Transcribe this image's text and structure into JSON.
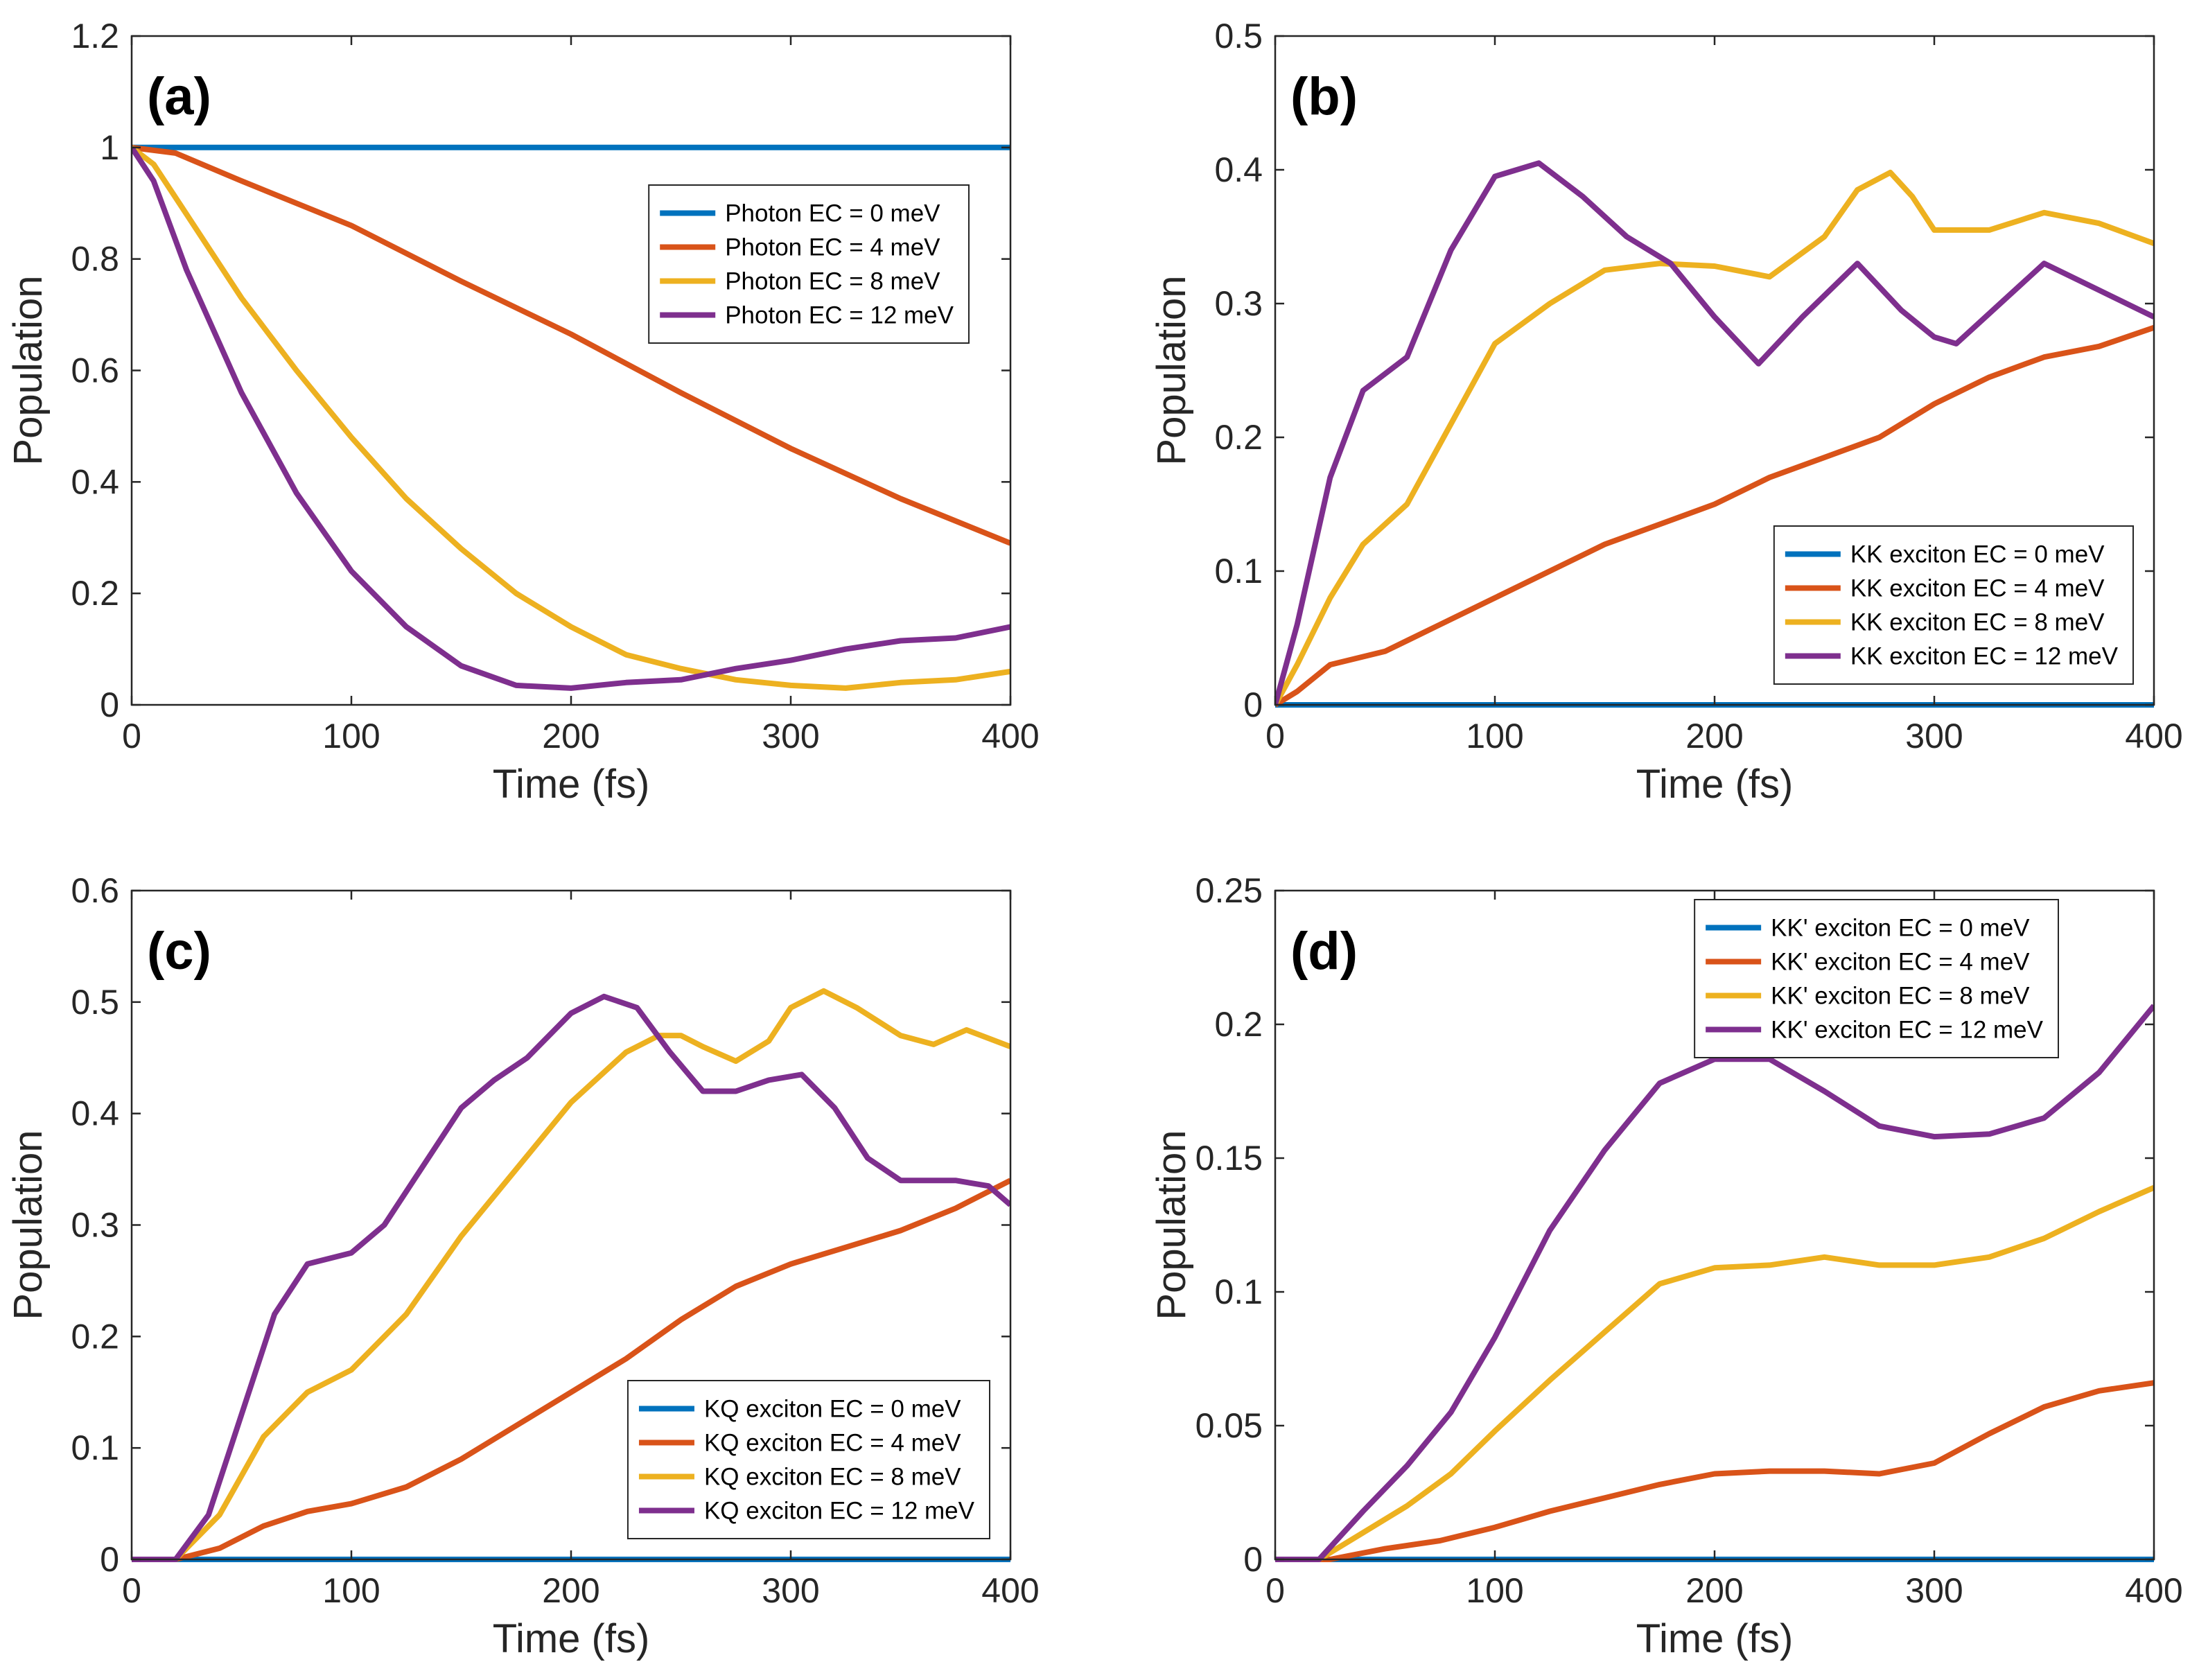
{
  "figure": {
    "background": "#ffffff",
    "axis_color": "#262626"
  },
  "chart_data": [
    {
      "type": "line",
      "panel_label": "(a)",
      "xlabel": "Time (fs)",
      "ylabel": "Population",
      "xlim": [
        0,
        400
      ],
      "ylim": [
        0,
        1.2
      ],
      "xticks": [
        0,
        100,
        200,
        300,
        400
      ],
      "xtick_labels": [
        "0",
        "100",
        "200",
        "300",
        "400"
      ],
      "yticks": [
        0,
        0.2,
        0.4,
        0.6,
        0.8,
        1,
        1.2
      ],
      "ytick_labels": [
        "0",
        "0.2",
        "0.4",
        "0.6",
        "0.8",
        "1",
        "1.2"
      ],
      "legend_location": "upper-right",
      "series": [
        {
          "name": "Photon EC = 0 meV",
          "color": "#0072BD",
          "x": [
            0,
            400
          ],
          "y": [
            1.0,
            1.0
          ]
        },
        {
          "name": "Photon EC = 4 meV",
          "color": "#D95319",
          "x": [
            0,
            20,
            50,
            100,
            150,
            200,
            250,
            300,
            350,
            400
          ],
          "y": [
            1.0,
            0.99,
            0.94,
            0.86,
            0.76,
            0.665,
            0.56,
            0.46,
            0.37,
            0.29
          ]
        },
        {
          "name": "Photon EC = 8 meV",
          "color": "#EDB120",
          "x": [
            0,
            10,
            25,
            50,
            75,
            100,
            125,
            150,
            175,
            200,
            225,
            250,
            275,
            300,
            325,
            350,
            375,
            400
          ],
          "y": [
            1.0,
            0.97,
            0.88,
            0.73,
            0.6,
            0.48,
            0.37,
            0.28,
            0.2,
            0.14,
            0.09,
            0.065,
            0.045,
            0.035,
            0.03,
            0.04,
            0.045,
            0.06
          ]
        },
        {
          "name": "Photon EC = 12 meV",
          "color": "#7E2F8E",
          "x": [
            0,
            10,
            25,
            50,
            75,
            100,
            125,
            150,
            175,
            200,
            225,
            250,
            275,
            300,
            325,
            350,
            375,
            400
          ],
          "y": [
            1.0,
            0.94,
            0.78,
            0.56,
            0.38,
            0.24,
            0.14,
            0.07,
            0.035,
            0.03,
            0.04,
            0.045,
            0.065,
            0.08,
            0.1,
            0.115,
            0.12,
            0.14
          ]
        }
      ]
    },
    {
      "type": "line",
      "panel_label": "(b)",
      "xlabel": "Time (fs)",
      "ylabel": "Population",
      "xlim": [
        0,
        400
      ],
      "ylim": [
        0,
        0.5
      ],
      "xticks": [
        0,
        100,
        200,
        300,
        400
      ],
      "xtick_labels": [
        "0",
        "100",
        "200",
        "300",
        "400"
      ],
      "yticks": [
        0,
        0.1,
        0.2,
        0.3,
        0.4,
        0.5
      ],
      "ytick_labels": [
        "0",
        "0.1",
        "0.2",
        "0.3",
        "0.4",
        "0.5"
      ],
      "legend_location": "lower-right",
      "series": [
        {
          "name": "KK exciton EC = 0 meV",
          "color": "#0072BD",
          "x": [
            0,
            400
          ],
          "y": [
            0,
            0
          ]
        },
        {
          "name": "KK exciton EC = 4 meV",
          "color": "#D95319",
          "x": [
            0,
            10,
            25,
            50,
            75,
            100,
            125,
            150,
            175,
            200,
            225,
            250,
            275,
            300,
            325,
            350,
            375,
            400
          ],
          "y": [
            0,
            0.01,
            0.03,
            0.04,
            0.06,
            0.08,
            0.1,
            0.12,
            0.135,
            0.15,
            0.17,
            0.185,
            0.2,
            0.225,
            0.245,
            0.26,
            0.268,
            0.282
          ]
        },
        {
          "name": "KK exciton EC = 8 meV",
          "color": "#EDB120",
          "x": [
            0,
            10,
            25,
            40,
            60,
            80,
            100,
            125,
            150,
            175,
            200,
            225,
            250,
            265,
            280,
            290,
            300,
            325,
            350,
            375,
            400
          ],
          "y": [
            0,
            0.03,
            0.08,
            0.12,
            0.15,
            0.21,
            0.27,
            0.3,
            0.325,
            0.33,
            0.328,
            0.32,
            0.35,
            0.385,
            0.398,
            0.38,
            0.355,
            0.355,
            0.368,
            0.36,
            0.345
          ]
        },
        {
          "name": "KK exciton EC = 12 meV",
          "color": "#7E2F8E",
          "x": [
            0,
            10,
            25,
            40,
            60,
            80,
            100,
            120,
            140,
            160,
            180,
            200,
            220,
            240,
            265,
            285,
            300,
            310,
            330,
            350,
            375,
            400
          ],
          "y": [
            0,
            0.06,
            0.17,
            0.235,
            0.26,
            0.34,
            0.395,
            0.405,
            0.38,
            0.35,
            0.33,
            0.29,
            0.255,
            0.29,
            0.33,
            0.295,
            0.275,
            0.27,
            0.3,
            0.33,
            0.31,
            0.29
          ]
        }
      ]
    },
    {
      "type": "line",
      "panel_label": "(c)",
      "xlabel": "Time (fs)",
      "ylabel": "Population",
      "xlim": [
        0,
        400
      ],
      "ylim": [
        0,
        0.6
      ],
      "xticks": [
        0,
        100,
        200,
        300,
        400
      ],
      "xtick_labels": [
        "0",
        "100",
        "200",
        "300",
        "400"
      ],
      "yticks": [
        0,
        0.1,
        0.2,
        0.3,
        0.4,
        0.5,
        0.6
      ],
      "ytick_labels": [
        "0",
        "0.1",
        "0.2",
        "0.3",
        "0.4",
        "0.5",
        "0.6"
      ],
      "legend_location": "lower-right",
      "series": [
        {
          "name": "KQ exciton EC = 0 meV",
          "color": "#0072BD",
          "x": [
            0,
            400
          ],
          "y": [
            0,
            0
          ]
        },
        {
          "name": "KQ exciton EC = 4 meV",
          "color": "#D95319",
          "x": [
            0,
            20,
            40,
            60,
            80,
            100,
            125,
            150,
            175,
            200,
            225,
            250,
            275,
            300,
            325,
            350,
            375,
            400
          ],
          "y": [
            0,
            0,
            0.01,
            0.03,
            0.043,
            0.05,
            0.065,
            0.09,
            0.12,
            0.15,
            0.18,
            0.215,
            0.245,
            0.265,
            0.28,
            0.295,
            0.315,
            0.34
          ]
        },
        {
          "name": "KQ exciton EC = 8 meV",
          "color": "#EDB120",
          "x": [
            0,
            20,
            40,
            60,
            80,
            100,
            125,
            150,
            175,
            200,
            225,
            240,
            250,
            260,
            275,
            290,
            300,
            315,
            330,
            350,
            365,
            380,
            400
          ],
          "y": [
            0,
            0,
            0.04,
            0.11,
            0.15,
            0.17,
            0.22,
            0.29,
            0.35,
            0.41,
            0.455,
            0.47,
            0.47,
            0.46,
            0.447,
            0.465,
            0.495,
            0.51,
            0.495,
            0.47,
            0.462,
            0.475,
            0.46
          ]
        },
        {
          "name": "KQ exciton EC = 12 meV",
          "color": "#7E2F8E",
          "x": [
            0,
            20,
            35,
            50,
            65,
            80,
            100,
            115,
            130,
            150,
            165,
            180,
            200,
            215,
            230,
            245,
            260,
            275,
            290,
            305,
            320,
            335,
            350,
            375,
            390,
            400
          ],
          "y": [
            0,
            0,
            0.04,
            0.13,
            0.22,
            0.265,
            0.275,
            0.3,
            0.345,
            0.405,
            0.43,
            0.45,
            0.49,
            0.505,
            0.495,
            0.455,
            0.42,
            0.42,
            0.43,
            0.435,
            0.405,
            0.36,
            0.34,
            0.34,
            0.335,
            0.318
          ]
        }
      ]
    },
    {
      "type": "line",
      "panel_label": "(d)",
      "xlabel": "Time (fs)",
      "ylabel": "Population",
      "xlim": [
        0,
        400
      ],
      "ylim": [
        0,
        0.25
      ],
      "xticks": [
        0,
        100,
        200,
        300,
        400
      ],
      "xtick_labels": [
        "0",
        "100",
        "200",
        "300",
        "400"
      ],
      "yticks": [
        0,
        0.05,
        0.1,
        0.15,
        0.2,
        0.25
      ],
      "ytick_labels": [
        "0",
        "0.05",
        "0.1",
        "0.15",
        "0.2",
        "0.25"
      ],
      "legend_location": "top-right",
      "series": [
        {
          "name": "KK' exciton EC = 0 meV",
          "color": "#0072BD",
          "x": [
            0,
            400
          ],
          "y": [
            0,
            0
          ]
        },
        {
          "name": "KK' exciton EC = 4 meV",
          "color": "#D95319",
          "x": [
            0,
            25,
            50,
            75,
            100,
            125,
            150,
            175,
            200,
            225,
            250,
            275,
            300,
            325,
            350,
            375,
            400
          ],
          "y": [
            0,
            0,
            0.004,
            0.007,
            0.012,
            0.018,
            0.023,
            0.028,
            0.032,
            0.033,
            0.033,
            0.032,
            0.036,
            0.047,
            0.057,
            0.063,
            0.066
          ]
        },
        {
          "name": "KK' exciton EC = 8 meV",
          "color": "#EDB120",
          "x": [
            0,
            20,
            40,
            60,
            80,
            100,
            125,
            150,
            175,
            200,
            225,
            250,
            275,
            300,
            325,
            350,
            375,
            400
          ],
          "y": [
            0,
            0,
            0.01,
            0.02,
            0.032,
            0.048,
            0.067,
            0.085,
            0.103,
            0.109,
            0.11,
            0.113,
            0.11,
            0.11,
            0.113,
            0.12,
            0.13,
            0.139
          ]
        },
        {
          "name": "KK' exciton EC = 12 meV",
          "color": "#7E2F8E",
          "x": [
            0,
            20,
            40,
            60,
            80,
            100,
            125,
            150,
            175,
            200,
            225,
            250,
            275,
            300,
            325,
            350,
            375,
            400
          ],
          "y": [
            0,
            0,
            0.018,
            0.035,
            0.055,
            0.083,
            0.123,
            0.153,
            0.178,
            0.187,
            0.187,
            0.175,
            0.162,
            0.158,
            0.159,
            0.165,
            0.182,
            0.207
          ]
        }
      ]
    }
  ]
}
